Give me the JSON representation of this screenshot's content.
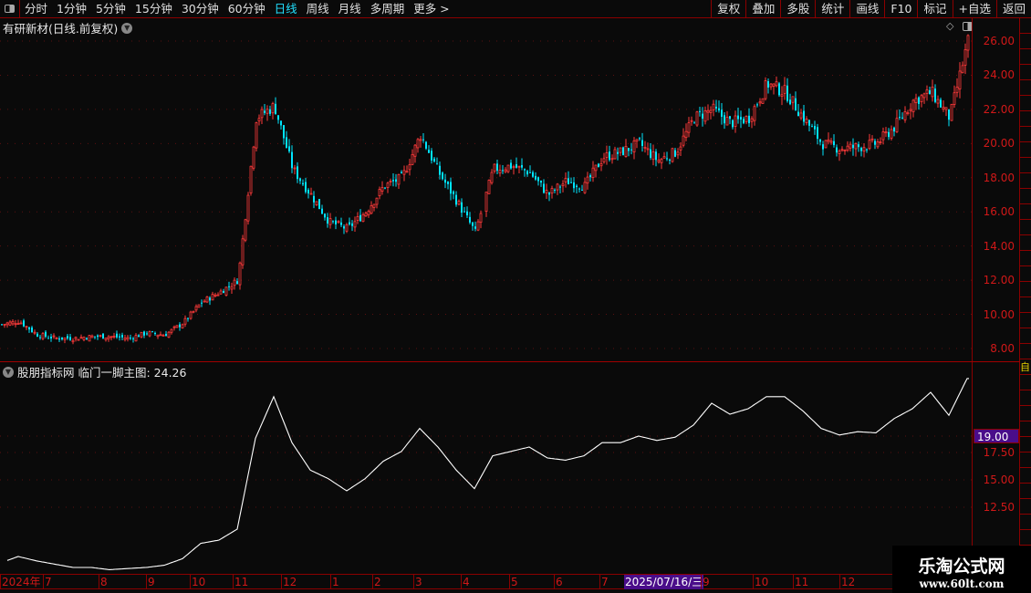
{
  "toolbar": {
    "periods": [
      "分时",
      "1分钟",
      "5分钟",
      "15分钟",
      "30分钟",
      "60分钟",
      "日线",
      "周线",
      "月线",
      "多周期",
      "更多 >"
    ],
    "active": "日线",
    "right_buttons": [
      "复权",
      "叠加",
      "多股",
      "统计",
      "画线",
      "F10",
      "标记",
      "+自选",
      "返回"
    ]
  },
  "main": {
    "title": "有研新材(日线.前复权)",
    "price_ticks": [
      "26.00",
      "24.00",
      "22.00",
      "20.00",
      "18.00",
      "16.00",
      "14.00",
      "12.00",
      "10.00",
      "8.00"
    ]
  },
  "indicator": {
    "title": "股朋指标网 临门一脚主图: 24.26",
    "ticks": [
      "17.50",
      "15.00",
      "12.50"
    ],
    "crosshair_value": "19.00"
  },
  "time_axis": {
    "labels": [
      "2024年",
      "7",
      "8",
      "9",
      "10",
      "11",
      "12",
      "1",
      "2",
      "3",
      "4",
      "5",
      "6",
      "7",
      "2025/07/16/三",
      "9",
      "10",
      "11",
      "12"
    ]
  },
  "side_strip": {
    "top_label": "自"
  },
  "watermark": {
    "name": "乐淘公式网",
    "url": "www.60lt.com"
  },
  "colors": {
    "up": "#ff3a3a",
    "down": "#00e5ff",
    "line": "#ffffff",
    "accent": "#22e0ff",
    "border": "#8b0000"
  },
  "chart_data": [
    {
      "type": "candlestick",
      "title": "有研新材(日线.前复权)",
      "x_range": [
        "2024-06",
        "2025-12"
      ],
      "ylim": [
        8,
        26
      ],
      "close_samples": [
        9.4,
        9.6,
        8.8,
        8.6,
        8.6,
        8.7,
        8.7,
        8.6,
        8.9,
        8.8,
        9.5,
        10.7,
        11.3,
        12.0,
        21.5,
        22.2,
        18.5,
        17.0,
        15.4,
        15.0,
        16.0,
        17.5,
        18.0,
        20.5,
        18.3,
        16.6,
        14.8,
        18.5,
        18.7,
        18.3,
        17.0,
        17.8,
        17.5,
        19.2,
        19.5,
        20.0,
        19.0,
        19.5,
        21.5,
        22.0,
        21.2,
        21.5,
        23.5,
        23.0,
        21.5,
        20.0,
        19.7,
        19.8,
        20.0,
        21.0,
        22.5,
        23.0,
        21.5,
        26.0
      ]
    },
    {
      "type": "line",
      "name": "临门一脚主图",
      "last": 24.26,
      "values": [
        7.4,
        8.0,
        7.6,
        7.3,
        7.0,
        7.0,
        6.8,
        6.9,
        7.0,
        7.2,
        7.8,
        9.2,
        9.5,
        10.5,
        18.8,
        22.6,
        18.4,
        15.9,
        15.1,
        14.0,
        15.1,
        16.7,
        17.6,
        19.7,
        18.0,
        15.9,
        14.2,
        17.2,
        17.6,
        18.0,
        17.0,
        16.8,
        17.2,
        18.4,
        18.4,
        19.0,
        18.6,
        18.9,
        20.0,
        22.0,
        21.0,
        21.5,
        22.6,
        22.6,
        21.3,
        19.7,
        19.1,
        19.4,
        19.3,
        20.6,
        21.5,
        23.0,
        20.9,
        24.26
      ]
    }
  ]
}
